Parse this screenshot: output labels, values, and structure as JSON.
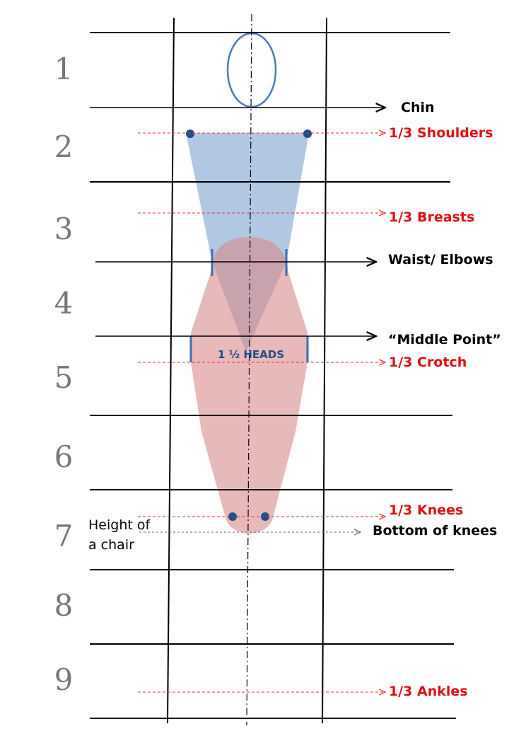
{
  "head_numbers": [
    "1",
    "2",
    "3",
    "4",
    "5",
    "6",
    "7",
    "8",
    "9"
  ],
  "labels": {
    "chin": "Chin",
    "shoulders": "1/3  Shoulders",
    "breasts": "1/3  Breasts",
    "waist": "Waist/ Elbows",
    "middle": "“Middle Point”",
    "crotch": "1/3 Crotch",
    "knees": "1/3 Knees",
    "bottom_knees": "Bottom of knees",
    "ankles": "1/3 Ankles",
    "heads": "1 ½ HEADS",
    "chair": [
      "Height of",
      "a chair"
    ]
  }
}
